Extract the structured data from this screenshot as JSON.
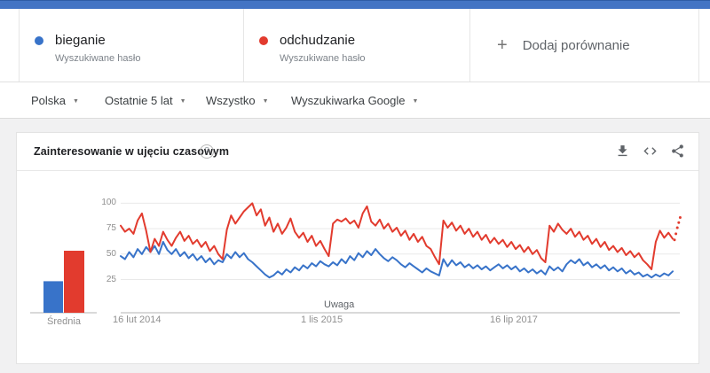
{
  "comparison": {
    "terms": [
      {
        "label": "bieganie",
        "sublabel": "Wyszukiwane hasło",
        "color": "#3873c9"
      },
      {
        "label": "odchudzanie",
        "sublabel": "Wyszukiwane hasło",
        "color": "#e23b2e"
      }
    ],
    "plus_glyph": "+",
    "add_label": "Dodaj porównanie"
  },
  "filters": [
    {
      "label": "Polska"
    },
    {
      "label": "Ostatnie 5 lat"
    },
    {
      "label": "Wszystko"
    },
    {
      "label": "Wyszukiwarka Google"
    }
  ],
  "chart_card": {
    "title": "Zainteresowanie w ujęciu czasowym",
    "help_glyph": "?"
  },
  "chart_data": {
    "type": "line",
    "title": "Zainteresowanie w ujęciu czasowym",
    "ylim": [
      0,
      100
    ],
    "grid": true,
    "legend_position": "none",
    "y_ticks": [
      25,
      50,
      75,
      100
    ],
    "x_tick_labels": [
      "16 lut 2014",
      "1 lis 2015",
      "16 lip 2017"
    ],
    "annotation": "Uwaga",
    "averages": {
      "label": "Średnia",
      "values": [
        {
          "name": "bieganie",
          "value": 31
        },
        {
          "name": "odchudzanie",
          "value": 61
        }
      ]
    },
    "series": [
      {
        "name": "bieganie",
        "color": "#3873c9",
        "values": [
          48,
          45,
          52,
          47,
          55,
          50,
          57,
          52,
          58,
          50,
          62,
          54,
          50,
          55,
          48,
          52,
          46,
          50,
          44,
          48,
          42,
          46,
          40,
          44,
          42,
          50,
          46,
          52,
          47,
          51,
          45,
          42,
          38,
          34,
          30,
          27,
          29,
          33,
          30,
          35,
          32,
          37,
          34,
          39,
          36,
          41,
          38,
          43,
          40,
          38,
          42,
          39,
          45,
          41,
          48,
          44,
          51,
          47,
          53,
          49,
          55,
          50,
          46,
          43,
          47,
          44,
          40,
          37,
          41,
          38,
          35,
          32,
          36,
          33,
          31,
          29,
          45,
          38,
          44,
          39,
          42,
          37,
          40,
          36,
          39,
          35,
          38,
          34,
          37,
          40,
          36,
          39,
          35,
          38,
          33,
          36,
          32,
          35,
          31,
          34,
          30,
          38,
          34,
          37,
          33,
          40,
          44,
          41,
          45,
          39,
          42,
          37,
          40,
          36,
          39,
          34,
          37,
          33,
          36,
          31,
          34,
          30,
          32,
          28,
          30,
          27,
          30,
          28,
          31,
          29,
          33
        ]
      },
      {
        "name": "odchudzanie",
        "color": "#e23b2e",
        "values": [
          78,
          72,
          75,
          70,
          83,
          90,
          73,
          52,
          65,
          58,
          72,
          64,
          58,
          66,
          72,
          63,
          68,
          60,
          64,
          57,
          62,
          53,
          58,
          50,
          45,
          74,
          88,
          80,
          86,
          92,
          96,
          100,
          88,
          94,
          78,
          86,
          72,
          80,
          70,
          76,
          85,
          72,
          66,
          71,
          62,
          68,
          58,
          63,
          55,
          48,
          80,
          84,
          82,
          85,
          80,
          83,
          76,
          90,
          97,
          82,
          78,
          84,
          75,
          80,
          72,
          76,
          68,
          73,
          64,
          70,
          62,
          67,
          58,
          55,
          47,
          40,
          83,
          76,
          81,
          73,
          78,
          70,
          75,
          67,
          72,
          64,
          69,
          61,
          66,
          60,
          64,
          57,
          62,
          55,
          59,
          52,
          57,
          50,
          54,
          46,
          42,
          78,
          72,
          80,
          74,
          70,
          75,
          67,
          72,
          64,
          68,
          60,
          65,
          57,
          62,
          54,
          58,
          52,
          56,
          49,
          53,
          47,
          51,
          44,
          40,
          35,
          62,
          73,
          66,
          71,
          65
        ],
        "dotted_tail": [
          64,
          70,
          76,
          81,
          86
        ]
      }
    ]
  }
}
